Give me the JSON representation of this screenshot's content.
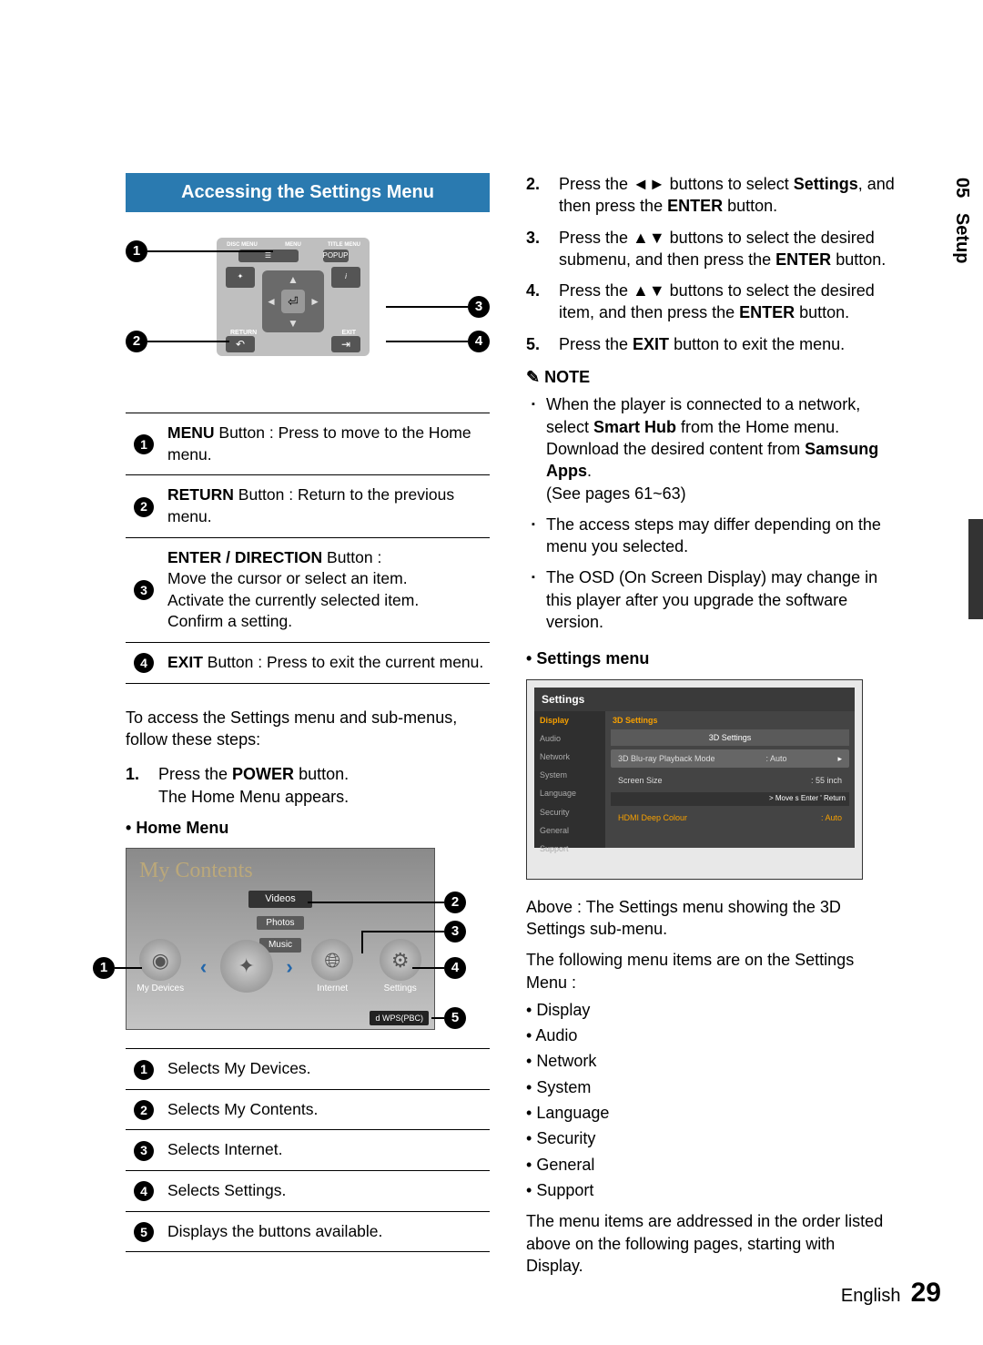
{
  "section_number": "05",
  "section_name": "Setup",
  "banner": "Accessing the Settings Menu",
  "remote": {
    "top_labels": [
      "DISC MENU",
      "MENU",
      "TITLE MENU"
    ],
    "popup": "POPUP",
    "tools": "TOOLS",
    "info": "INFO",
    "return": "RETURN",
    "exit": "EXIT"
  },
  "remote_desc": [
    {
      "num": "1",
      "bold": "MENU",
      "rest": " Button : Press to move to the Home menu."
    },
    {
      "num": "2",
      "bold": "RETURN",
      "rest": " Button : Return to the previous menu."
    },
    {
      "num": "3",
      "bold": "ENTER / DIRECTION",
      "rest": " Button :\nMove the cursor or select an item.\nActivate the currently selected item.\nConfirm a setting."
    },
    {
      "num": "4",
      "bold": "EXIT",
      "rest": " Button : Press to exit the current menu."
    }
  ],
  "intro": "To access the Settings menu and sub-menus, follow these steps:",
  "steps_left": [
    {
      "n": "1.",
      "pre": "Press the ",
      "b": "POWER",
      "post": " button.\nThe Home Menu appears."
    }
  ],
  "home_menu_hd": "Home Menu",
  "home_menu": {
    "title": "My Contents",
    "cats": [
      "Videos",
      "Photos",
      "Music"
    ],
    "items": [
      "My Devices",
      "Internet",
      "Settings"
    ],
    "footer": "d WPS(PBC)"
  },
  "home_desc": [
    {
      "num": "1",
      "text": "Selects My Devices."
    },
    {
      "num": "2",
      "text": "Selects My Contents."
    },
    {
      "num": "3",
      "text": "Selects Internet."
    },
    {
      "num": "4",
      "text": "Selects Settings."
    },
    {
      "num": "5",
      "text": "Displays the buttons available."
    }
  ],
  "steps_right": [
    {
      "n": "2.",
      "text": "Press the ◄► buttons to select ",
      "b": "Settings",
      "post": ", and then press the ",
      "b2": "ENTER",
      "post2": " button."
    },
    {
      "n": "3.",
      "text": "Press the ▲▼ buttons to select the desired submenu, and then press the ",
      "b": "ENTER",
      "post": " button."
    },
    {
      "n": "4.",
      "text": "Press the ▲▼ buttons to select the desired item, and then press the ",
      "b": "ENTER",
      "post": " button."
    },
    {
      "n": "5.",
      "text": "Press the ",
      "b": "EXIT",
      "post": " button to exit the menu."
    }
  ],
  "note_label": "NOTE",
  "notes": [
    {
      "pre": "When the player is connected to a network, select ",
      "b1": "Smart Hub",
      "mid": " from the Home menu.\nDownload the desired content from ",
      "b2": "Samsung Apps",
      "post": ".\n(See pages 61~63)"
    },
    {
      "text": "The access steps may differ depending on the menu you selected."
    },
    {
      "text": "The OSD (On Screen Display) may change in this player after you upgrade the software version."
    }
  ],
  "settings_menu_hd": "Settings menu",
  "settings_shot": {
    "title": "Settings",
    "side": [
      "Display",
      "Audio",
      "Network",
      "System",
      "Language",
      "Security",
      "General",
      "Support"
    ],
    "side_selected": 0,
    "main_header": "3D Settings",
    "sub_header": "3D Settings",
    "row1_label": "3D Blu-ray Playback Mode",
    "row1_value": ": Auto",
    "row2_label": "Screen Size",
    "row2_value": ": 55   inch",
    "nav": "> Move   s Enter   ' Return",
    "bottom_label": "HDMI Deep Colour",
    "bottom_value": ": Auto"
  },
  "caption1": "Above : The Settings menu showing the 3D Settings sub-menu.",
  "caption2": "The following menu items are on the Settings Menu :",
  "menu_items": [
    "Display",
    "Audio",
    "Network",
    "System",
    "Language",
    "Security",
    "General",
    "Support"
  ],
  "caption3": "The menu items are addressed in the order listed above on the following pages, starting with Display.",
  "footer_lang": "English",
  "footer_page": "29"
}
